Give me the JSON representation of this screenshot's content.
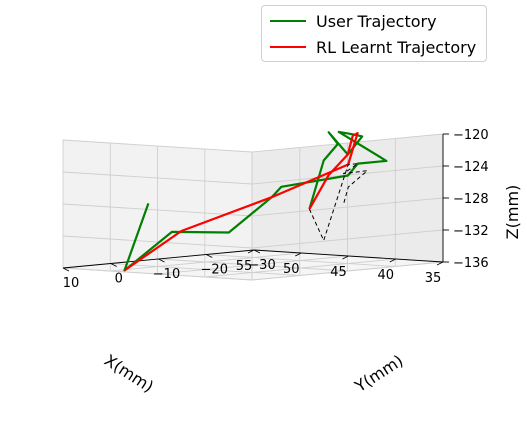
{
  "chart_data": {
    "type": "line",
    "projection": "3d",
    "xlabel": "X(mm)",
    "ylabel": "Y(mm)",
    "zlabel": "Z(mm)",
    "x_ticks": [
      "10",
      "0",
      "−10",
      "−20",
      "−30"
    ],
    "y_ticks": [
      "35",
      "40",
      "45",
      "50",
      "55"
    ],
    "z_ticks": [
      "−120",
      "−124",
      "−128",
      "−132",
      "−136"
    ],
    "grid": true,
    "legend_position": "top-right",
    "series": [
      {
        "name": "User Trajectory",
        "color": "#008000",
        "points": [
          [
            -20,
            51,
            -128
          ],
          [
            -19,
            54,
            -136
          ],
          [
            -11,
            53,
            -131
          ],
          [
            -3,
            51,
            -131
          ],
          [
            -2,
            47,
            -127
          ],
          [
            -4,
            45,
            -126
          ],
          [
            0,
            40,
            -125
          ],
          [
            -4,
            37,
            -124
          ],
          [
            -4,
            34,
            -124
          ],
          [
            -6,
            38,
            -120
          ],
          [
            -1,
            39,
            -120
          ],
          [
            3,
            40,
            -120
          ],
          [
            4,
            42,
            -122
          ],
          [
            4,
            44,
            -119
          ],
          [
            10,
            46,
            -120
          ],
          [
            9,
            47,
            -122
          ],
          [
            8,
            48,
            -128
          ]
        ]
      },
      {
        "name": "RL Learnt Trajectory",
        "color": "#ff0000",
        "points": [
          [
            -19,
            54,
            -136
          ],
          [
            -11,
            52,
            -131
          ],
          [
            -2,
            47,
            -127
          ],
          [
            -4,
            38,
            -124
          ],
          [
            -2,
            38,
            -120
          ],
          [
            1,
            40,
            -120
          ],
          [
            4,
            42,
            -122
          ],
          [
            8,
            46,
            -124
          ],
          [
            8,
            48,
            -128
          ]
        ]
      },
      {
        "name": "",
        "color": "#000000",
        "points": [
          [
            8,
            48,
            -128
          ],
          [
            9,
            47,
            -132
          ],
          [
            -4,
            38,
            -124
          ],
          [
            -4,
            37,
            -124
          ],
          [
            -3,
            39,
            -125
          ],
          [
            -4,
            36,
            -125
          ],
          [
            -6,
            37,
            -127
          ],
          [
            -5,
            38,
            -129
          ]
        ]
      }
    ]
  }
}
